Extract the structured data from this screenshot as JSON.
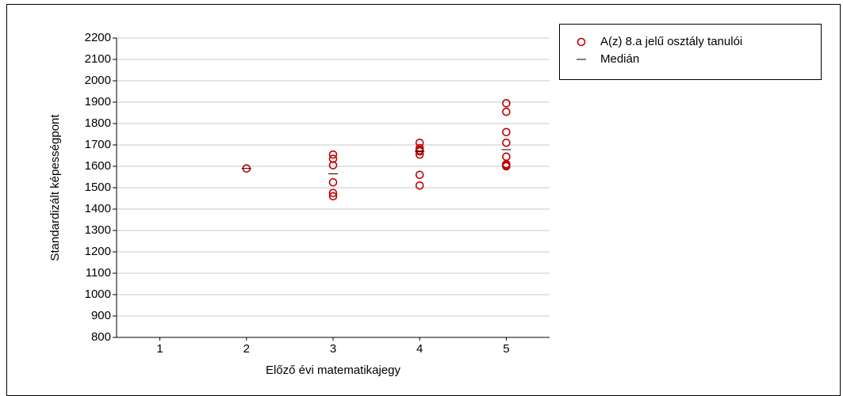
{
  "chart_data": {
    "type": "scatter",
    "x_label": "Előző évi matematikajegy",
    "y_label": "Standardizált képességpont",
    "xlim": [
      0.5,
      5.5
    ],
    "xticks": [
      1,
      2,
      3,
      4,
      5
    ],
    "ylim": [
      800,
      2200
    ],
    "yticks": [
      800,
      900,
      1000,
      1100,
      1200,
      1300,
      1400,
      1500,
      1600,
      1700,
      1800,
      1900,
      2000,
      2100,
      2200
    ],
    "grid": true,
    "legend": "outside-right",
    "series": [
      {
        "name": "A(z) 8.a jelű osztály tanulói",
        "color": "#c00000",
        "marker": "circle",
        "x": [
          2,
          3,
          3,
          3,
          3,
          3,
          3,
          4,
          4,
          4,
          4,
          4,
          4,
          4,
          5,
          5,
          5,
          5,
          5,
          5,
          5,
          5
        ],
        "y": [
          1590,
          1655,
          1635,
          1605,
          1525,
          1475,
          1460,
          1710,
          1685,
          1675,
          1670,
          1655,
          1560,
          1510,
          1895,
          1855,
          1760,
          1710,
          1645,
          1610,
          1605,
          1600
        ]
      },
      {
        "name": "Medián",
        "color": "#000000",
        "marker": "dash",
        "x": [
          2,
          3,
          4,
          5
        ],
        "y": [
          1590,
          1565,
          1670,
          1678
        ]
      }
    ]
  }
}
